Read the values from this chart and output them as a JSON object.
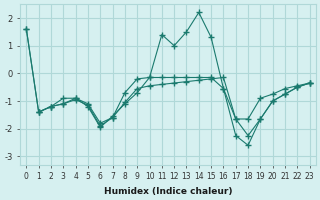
{
  "xlabel": "Humidex (Indice chaleur)",
  "ylabel": "",
  "bg_color": "#d6f0f0",
  "grid_color": "#b0d8d8",
  "line_color": "#1a7a6e",
  "xlim": [
    -0.5,
    23.5
  ],
  "ylim": [
    -3.3,
    2.5
  ],
  "xticks": [
    0,
    1,
    2,
    3,
    4,
    5,
    6,
    7,
    8,
    9,
    10,
    11,
    12,
    13,
    14,
    15,
    16,
    17,
    18,
    19,
    20,
    21,
    22,
    23
  ],
  "yticks": [
    -3,
    -2,
    -1,
    0,
    1,
    2
  ],
  "lines": [
    {
      "x": [
        0,
        1,
        2,
        3,
        4,
        5,
        6,
        7,
        8,
        9,
        10,
        11,
        12,
        13,
        14,
        15,
        16,
        17,
        18,
        19,
        20,
        21,
        22,
        23
      ],
      "y": [
        1.6,
        -1.4,
        -1.2,
        -0.9,
        -0.9,
        -1.1,
        -1.8,
        -1.6,
        -0.7,
        -0.2,
        -0.15,
        1.4,
        1.0,
        1.5,
        2.2,
        1.3,
        -0.55,
        -1.65,
        -1.65,
        -0.9,
        -0.75,
        -0.55,
        -0.45,
        -0.35
      ]
    },
    {
      "x": [
        0,
        1,
        2,
        3,
        4,
        5,
        6,
        7,
        8,
        9,
        10,
        11,
        12,
        13,
        14,
        15,
        16,
        17,
        18,
        19,
        20,
        21,
        22,
        23
      ],
      "y": [
        1.6,
        -1.4,
        -1.2,
        -1.1,
        -0.9,
        -1.2,
        -1.95,
        -1.55,
        -1.1,
        -0.7,
        -0.15,
        -0.15,
        -0.15,
        -0.15,
        -0.15,
        -0.15,
        -0.55,
        -2.25,
        -2.6,
        -1.65,
        -1.0,
        -0.75,
        -0.5,
        -0.35
      ]
    },
    {
      "x": [
        1,
        2,
        3,
        4,
        5,
        6,
        7,
        8,
        9,
        10,
        11,
        12,
        13,
        14,
        15,
        16,
        17,
        18,
        19,
        20,
        21,
        22,
        23
      ],
      "y": [
        -1.4,
        -1.2,
        -1.1,
        -0.95,
        -1.15,
        -1.9,
        -1.6,
        -1.05,
        -0.55,
        -0.45,
        -0.4,
        -0.35,
        -0.3,
        -0.25,
        -0.2,
        -0.15,
        -1.65,
        -2.25,
        -1.65,
        -1.0,
        -0.75,
        -0.5,
        -0.35
      ]
    }
  ]
}
